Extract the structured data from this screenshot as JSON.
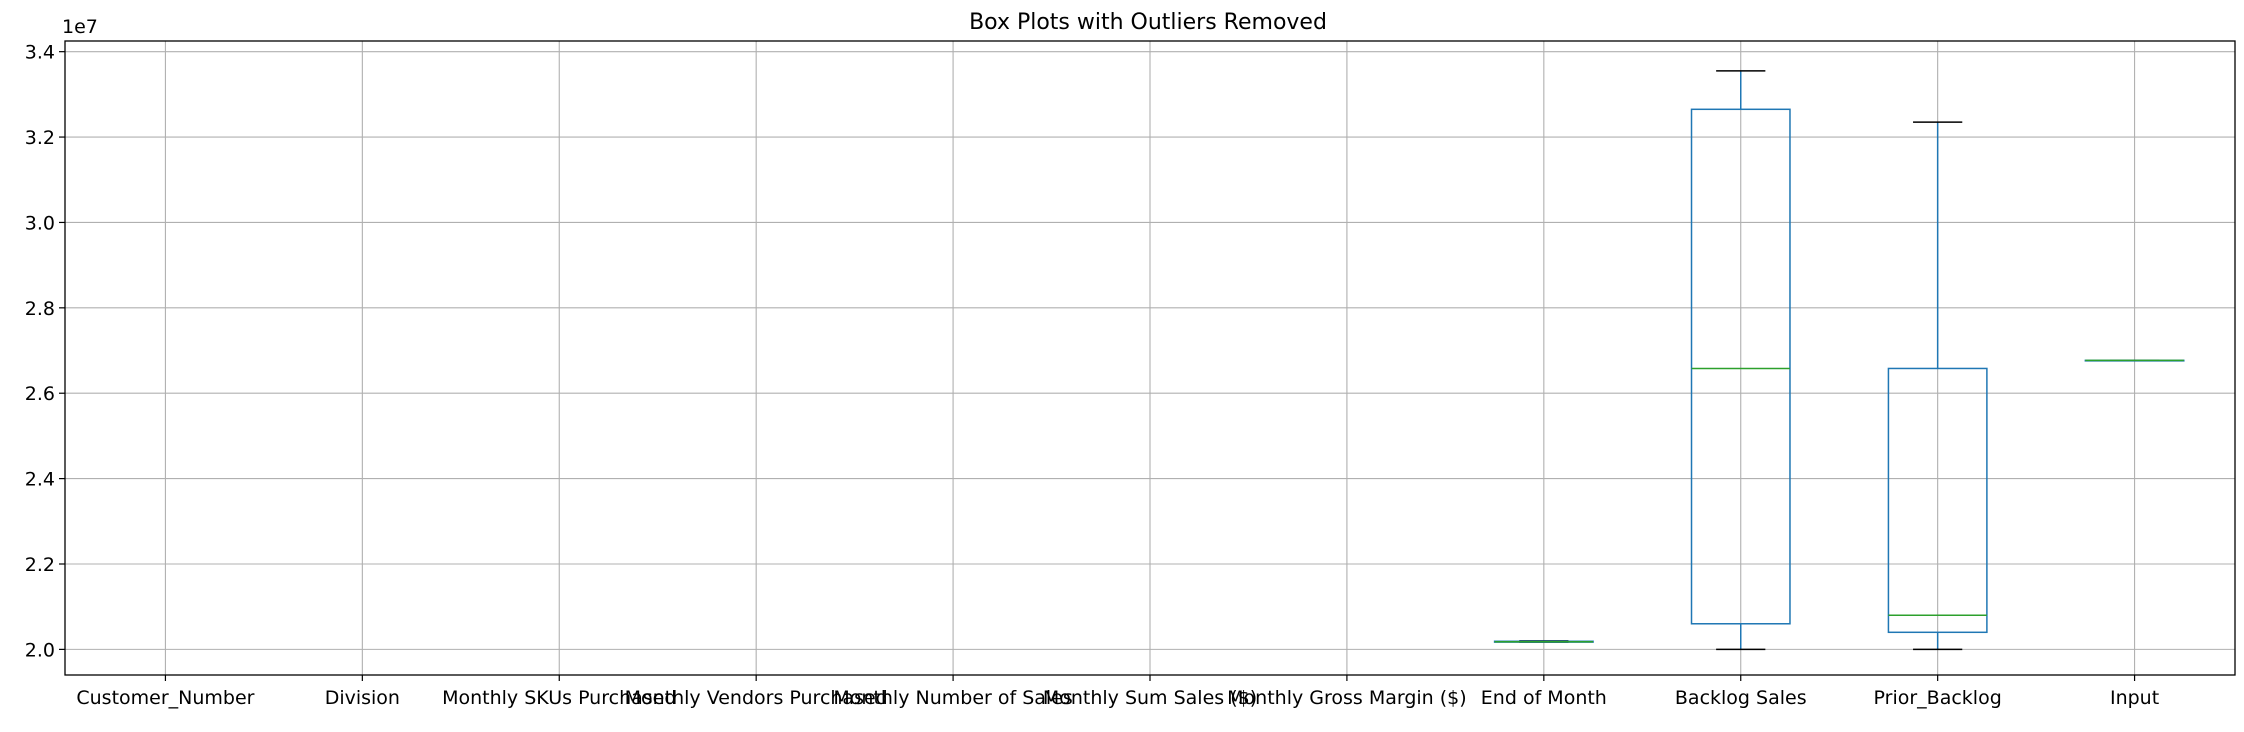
{
  "chart_data": {
    "type": "box",
    "title": "Box Plots with Outliers Removed",
    "y_offset_label": "1e7",
    "y_scale": 10000000,
    "ylim": [
      19.4,
      34.25
    ],
    "yticks": [
      20.0,
      22.0,
      24.0,
      26.0,
      28.0,
      30.0,
      32.0,
      34.0
    ],
    "ytick_labels": [
      "2.0",
      "2.2",
      "2.4",
      "2.6",
      "2.8",
      "3.0",
      "3.2",
      "3.4"
    ],
    "grid": true,
    "colors": {
      "box": "#1f77b4",
      "median": "#2ca02c",
      "whisker": "#1f77b4",
      "cap": "#000000",
      "grid": "#b0b0b0"
    },
    "categories": [
      "Customer_Number",
      "Division",
      "Monthly SKUs Purchased",
      "Monthly Vendors Purchased",
      "Monthly Number of Sales",
      "Monthly Sum Sales ($)",
      "Monthly Gross Margin ($)",
      "End of Month",
      "Backlog Sales",
      "Prior_Backlog",
      "Input"
    ],
    "boxes": [
      null,
      null,
      null,
      null,
      null,
      null,
      null,
      {
        "whislo": 20.17,
        "q1": 20.17,
        "med": 20.18,
        "q3": 20.19,
        "whishi": 20.2
      },
      {
        "whislo": 20.0,
        "q1": 20.6,
        "med": 26.58,
        "q3": 32.65,
        "whishi": 33.55
      },
      {
        "whislo": 20.0,
        "q1": 20.4,
        "med": 20.8,
        "q3": 26.58,
        "whishi": 32.35
      },
      {
        "whislo": 26.77,
        "q1": 26.77,
        "med": 26.77,
        "q3": 26.77,
        "whishi": 26.77
      }
    ]
  }
}
